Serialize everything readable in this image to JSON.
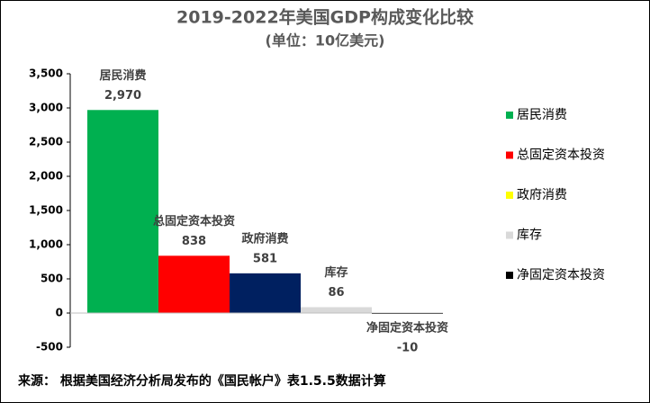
{
  "chart_data": {
    "type": "bar",
    "title": "2019-2022年美国GDP构成变化比较",
    "subtitle": "(单位：10亿美元)",
    "categories": [
      "居民消费",
      "总固定资本投资",
      "政府消费",
      "库存",
      "净固定资本投资"
    ],
    "values": [
      2970,
      838,
      581,
      86,
      -10
    ],
    "value_labels": [
      "2,970",
      "838",
      "581",
      "86",
      "-10"
    ],
    "colors": [
      "#00b050",
      "#ff0000",
      "#002060",
      "#d9d9d9",
      "#000000"
    ],
    "legend_colors": [
      "#00b050",
      "#ff0000",
      "#ffff00",
      "#d9d9d9",
      "#000000"
    ],
    "ylim": [
      -500,
      3500
    ],
    "yticks": [
      {
        "value": -500,
        "label": "-500"
      },
      0,
      500,
      {
        "value": 1000,
        "label": "1,000"
      },
      {
        "value": 1500,
        "label": "1,500"
      },
      {
        "value": 2000,
        "label": "2,000"
      },
      {
        "value": 2500,
        "label": "2,500"
      },
      {
        "value": 3000,
        "label": "3,000"
      },
      {
        "value": 3500,
        "label": "3,500"
      }
    ],
    "source": "来源：  根据美国经济分析局发布的《国民帐户》表1.5.5数据计算"
  }
}
